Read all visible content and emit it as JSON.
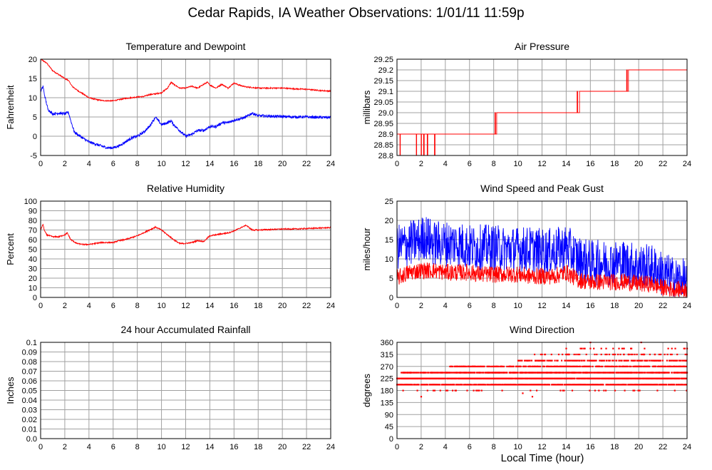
{
  "page": {
    "title": "Cedar Rapids, IA Weather Observations: 1/01/11 11:59p",
    "xaxis_label": "Local Time (hour)"
  },
  "colors": {
    "red": "#ff0000",
    "blue": "#0000ff",
    "grid": "#a0a0a0"
  },
  "chart_data": [
    {
      "id": "temp",
      "type": "line",
      "title": "Temperature and Dewpoint",
      "ylabel": "Fahrenheit",
      "xlim": [
        0,
        24
      ],
      "ylim": [
        -5,
        20
      ],
      "yticks": [
        "-5",
        "0",
        "5",
        "10",
        "15",
        "20"
      ],
      "xticks": [
        "0",
        "2",
        "4",
        "6",
        "8",
        "10",
        "12",
        "14",
        "16",
        "18",
        "20",
        "22",
        "24"
      ],
      "series": [
        {
          "color": "#ff0000",
          "noise": 0.15,
          "x": [
            0,
            0.5,
            1,
            1.5,
            2,
            2.3,
            2.6,
            3,
            3.5,
            4,
            4.5,
            5,
            5.5,
            6,
            6.5,
            7,
            7.5,
            8,
            8.5,
            9,
            9.5,
            10,
            10.5,
            10.8,
            11,
            11.5,
            12,
            12.5,
            13,
            13.5,
            13.8,
            14,
            14.5,
            15,
            15.5,
            16,
            16.5,
            17,
            18,
            19,
            20,
            21,
            22,
            23,
            24
          ],
          "y": [
            20,
            19,
            17,
            16,
            15,
            14.5,
            13,
            12,
            11,
            10,
            9.6,
            9.3,
            9.2,
            9.2,
            9.5,
            9.8,
            10,
            10.2,
            10.3,
            10.8,
            11,
            11.3,
            12.5,
            14,
            13.5,
            12.5,
            12.5,
            13,
            12.5,
            13.5,
            14,
            13.3,
            12.5,
            13.5,
            12.5,
            13.8,
            13.2,
            12.8,
            12.5,
            12.5,
            12.5,
            12.3,
            12.2,
            11.9,
            11.7
          ]
        },
        {
          "color": "#0000ff",
          "noise": 0.35,
          "x": [
            0,
            0.2,
            0.3,
            0.6,
            1,
            1.5,
            2,
            2.3,
            2.5,
            2.8,
            3.5,
            4,
            4.5,
            5,
            5.5,
            6,
            6.5,
            7,
            7.5,
            8,
            8.5,
            9,
            9.5,
            10,
            10.5,
            10.8,
            11,
            11.5,
            12,
            12.5,
            13,
            13.5,
            14,
            14.5,
            15,
            15.5,
            16,
            16.5,
            17,
            17.5,
            18,
            19,
            20,
            21,
            22,
            23,
            24
          ],
          "y": [
            11.5,
            13,
            11,
            7,
            5.8,
            6,
            5.8,
            6.2,
            4,
            1,
            -0.5,
            -1.5,
            -2,
            -2.5,
            -3,
            -3,
            -2.5,
            -1.5,
            -0.5,
            0,
            1,
            2.5,
            5,
            3,
            3.5,
            4,
            3,
            1.5,
            0,
            0.5,
            1.5,
            1.5,
            2.5,
            2.5,
            3.5,
            3.5,
            4.2,
            4.5,
            5,
            6,
            5.3,
            5.2,
            5.1,
            5,
            5,
            4.9,
            4.9
          ]
        }
      ]
    },
    {
      "id": "pressure",
      "type": "line",
      "title": "Air Pressure",
      "ylabel": "millibars",
      "xlim": [
        0,
        24
      ],
      "ylim": [
        28.8,
        29.25
      ],
      "yticks": [
        "28.8",
        "28.85",
        "28.9",
        "28.95",
        "29.0",
        "29.05",
        "29.1",
        "29.15",
        "29.2",
        "29.25"
      ],
      "xticks": [
        "0",
        "2",
        "4",
        "6",
        "8",
        "10",
        "12",
        "14",
        "16",
        "18",
        "20",
        "22",
        "24"
      ],
      "series": [
        {
          "color": "#ff0000",
          "noise": 0,
          "x": [
            0,
            0.25,
            0.25,
            0.28,
            0.28,
            0.32,
            0.32,
            1.6,
            1.6,
            1.63,
            1.63,
            2.0,
            2.0,
            2.03,
            2.03,
            2.2,
            2.2,
            2.25,
            2.25,
            2.5,
            2.5,
            2.55,
            2.55,
            3.1,
            3.1,
            3.15,
            3.15,
            8.1,
            8.1,
            8.15,
            8.15,
            8.25,
            8.25,
            8.3,
            8.3,
            14.9,
            14.9,
            14.95,
            14.95,
            15.1,
            15.1,
            15.15,
            15.15,
            19.0,
            19.0,
            19.05,
            19.05,
            19.15,
            19.15,
            19.2,
            19.2,
            24
          ],
          "y": [
            28.9,
            28.9,
            28.8,
            28.8,
            28.9,
            28.9,
            28.9,
            28.9,
            28.8,
            28.8,
            28.9,
            28.9,
            28.8,
            28.8,
            28.9,
            28.9,
            28.8,
            28.8,
            28.9,
            28.9,
            28.8,
            28.8,
            28.9,
            28.9,
            28.8,
            28.8,
            28.9,
            28.9,
            29.0,
            29.0,
            28.9,
            28.9,
            29.0,
            29.0,
            29.0,
            29.0,
            29.1,
            29.1,
            29.0,
            29.0,
            29.1,
            29.1,
            29.1,
            29.1,
            29.2,
            29.2,
            29.1,
            29.1,
            29.2,
            29.2,
            29.2,
            29.2
          ]
        }
      ]
    },
    {
      "id": "humidity",
      "type": "line",
      "title": "Relative Humidity",
      "ylabel": "Percent",
      "xlim": [
        0,
        24
      ],
      "ylim": [
        0,
        100
      ],
      "yticks": [
        "0",
        "10",
        "20",
        "30",
        "40",
        "50",
        "60",
        "70",
        "80",
        "90",
        "100"
      ],
      "xticks": [
        "0",
        "2",
        "4",
        "6",
        "8",
        "10",
        "12",
        "14",
        "16",
        "18",
        "20",
        "22",
        "24"
      ],
      "series": [
        {
          "color": "#ff0000",
          "noise": 0.6,
          "x": [
            0,
            0.2,
            0.3,
            0.5,
            1,
            1.5,
            2,
            2.2,
            2.5,
            3,
            3.5,
            4,
            4.5,
            5,
            5.5,
            6,
            6.5,
            7,
            7.5,
            8,
            8.5,
            9,
            9.5,
            10,
            10.5,
            11,
            11.5,
            12,
            12.5,
            13,
            13.5,
            14,
            14.5,
            15,
            15.5,
            16,
            16.5,
            17,
            17.5,
            18,
            19,
            20,
            21,
            22,
            23,
            24
          ],
          "y": [
            70,
            76,
            70,
            65,
            63,
            63,
            65,
            67,
            60,
            56,
            55,
            55,
            56,
            57,
            57,
            57,
            59,
            60,
            62,
            64,
            67,
            70,
            73,
            70,
            65,
            60,
            56,
            56,
            57,
            59,
            58,
            64,
            65,
            66,
            67,
            69,
            72,
            75,
            70,
            70,
            70.5,
            71,
            71,
            71.5,
            72,
            72.5
          ]
        }
      ]
    },
    {
      "id": "wind",
      "type": "line",
      "title": "Wind Speed and Peak Gust",
      "ylabel": "miles/hour",
      "xlim": [
        0,
        24
      ],
      "ylim": [
        0,
        25
      ],
      "yticks": [
        "0",
        "5",
        "10",
        "15",
        "20",
        "25"
      ],
      "xticks": [
        "0",
        "2",
        "4",
        "6",
        "8",
        "10",
        "12",
        "14",
        "16",
        "18",
        "20",
        "22",
        "24"
      ],
      "series": [
        {
          "color": "#0000ff",
          "noise": 6,
          "x": [
            0,
            1,
            2,
            2.3,
            3,
            4,
            5,
            6,
            7,
            8,
            9,
            10,
            11,
            12,
            13,
            14,
            15,
            16,
            17,
            18,
            19,
            20,
            21,
            22,
            23,
            24
          ],
          "y": [
            13,
            14,
            15,
            16,
            14,
            14,
            14,
            13,
            13,
            13,
            12.5,
            12.5,
            12.5,
            12,
            12,
            13,
            10,
            9,
            9,
            9,
            9,
            8,
            8,
            6,
            4.5,
            4
          ]
        },
        {
          "color": "#ff0000",
          "noise": 2.2,
          "x": [
            0,
            1,
            2,
            3,
            4,
            5,
            6,
            7,
            8,
            9,
            10,
            11,
            12,
            13,
            14,
            15,
            16,
            17,
            18,
            19,
            20,
            21,
            22,
            23,
            24
          ],
          "y": [
            5,
            6.5,
            7,
            7,
            6.5,
            6.5,
            6.5,
            6,
            6,
            6,
            6,
            5.5,
            5.5,
            5.5,
            6.5,
            4.5,
            4,
            4,
            4,
            4,
            3.5,
            3.5,
            2.5,
            2,
            2
          ]
        }
      ]
    },
    {
      "id": "rain",
      "type": "line",
      "title": "24 hour Accumulated Rainfall",
      "ylabel": "Inches",
      "xlim": [
        0,
        24
      ],
      "ylim": [
        0,
        0.1
      ],
      "yticks": [
        "0.0",
        "0.01",
        "0.02",
        "0.03",
        "0.04",
        "0.05",
        "0.06",
        "0.07",
        "0.08",
        "0.09",
        "0.1"
      ],
      "xticks": [
        "0",
        "2",
        "4",
        "6",
        "8",
        "10",
        "12",
        "14",
        "16",
        "18",
        "20",
        "22",
        "24"
      ],
      "series": [
        {
          "color": "#ff0000",
          "noise": 0,
          "x": [
            0,
            24
          ],
          "y": [
            0,
            0
          ]
        }
      ]
    },
    {
      "id": "direction",
      "type": "scatter",
      "title": "Wind Direction",
      "ylabel": "degrees",
      "xlim": [
        0,
        24
      ],
      "ylim": [
        0,
        360
      ],
      "yticks": [
        "0",
        "45",
        "90",
        "135",
        "180",
        "225",
        "270",
        "315",
        "360"
      ],
      "xticks": [
        "0",
        "2",
        "4",
        "6",
        "8",
        "10",
        "12",
        "14",
        "16",
        "18",
        "20",
        "22",
        "24"
      ],
      "series": [
        {
          "color": "#ff0000",
          "bands": [
            {
              "y": 202,
              "from": 0,
              "to": 24,
              "density": 0.45
            },
            {
              "y": 225,
              "from": 0,
              "to": 24,
              "density": 0.55
            },
            {
              "y": 247,
              "from": 0.3,
              "to": 24,
              "density": 0.45
            },
            {
              "y": 270,
              "from": 4.3,
              "to": 24,
              "density": 0.35
            },
            {
              "y": 292,
              "from": 10,
              "to": 24,
              "density": 0.25
            },
            {
              "y": 315,
              "from": 10.8,
              "to": 24,
              "density": 0.08
            },
            {
              "y": 337,
              "from": 14,
              "to": 24,
              "density": 0.04
            },
            {
              "y": 180,
              "from": 0,
              "to": 24,
              "density": 0.02
            }
          ],
          "points": [
            [
              2.0,
              157
            ],
            [
              11.2,
              157
            ],
            [
              10.4,
              170
            ],
            [
              16.0,
              360
            ],
            [
              20.2,
              360
            ],
            [
              14.5,
              180
            ],
            [
              6.8,
              180
            ],
            [
              3.0,
              180
            ],
            [
              0.5,
              180
            ],
            [
              19.4,
              337
            ],
            [
              17.3,
              337
            ],
            [
              15.3,
              337
            ]
          ]
        }
      ]
    }
  ]
}
